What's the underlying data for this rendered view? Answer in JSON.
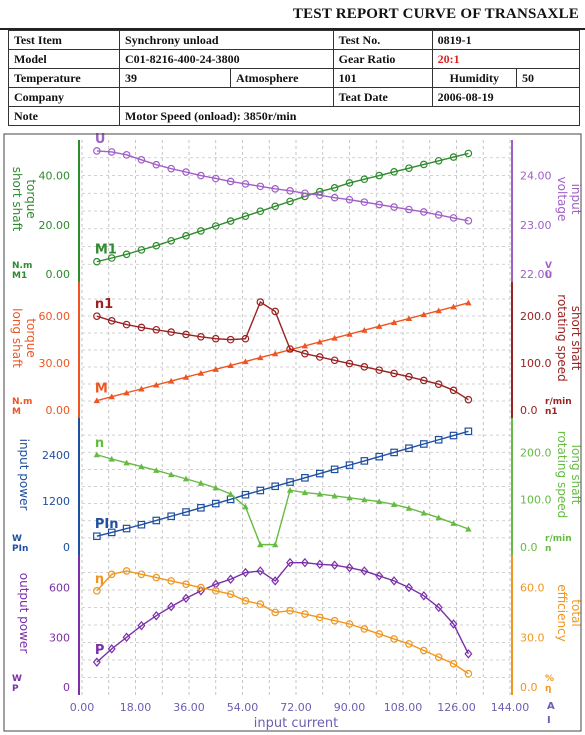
{
  "header": {
    "title": "TEST REPORT CURVE OF TRANSAXLE",
    "test_item_label": "Test Item",
    "test_item": "Synchrony unload",
    "test_no_label": "Test No.",
    "test_no": "0819-1",
    "model_label": "Model",
    "model": "C01-8216-400-24-3800",
    "gear_ratio_label": "Gear Ratio",
    "gear_ratio": "20:1",
    "temperature_label": "Temperature",
    "temperature": "39",
    "atmosphere_label": "Atmosphere",
    "atmosphere": "101",
    "humidity_label": "Humidity",
    "humidity": "50",
    "company_label": "Company",
    "company": "",
    "test_date_label": "Teat Date",
    "test_date": "2006-08-19",
    "note_label": "Note",
    "note": "Motor Speed (onload): 3850r/min"
  },
  "chart_data": {
    "type": "line",
    "xlabel": "input current",
    "x_unit": "A",
    "x_symbol": "I",
    "xlim": [
      0,
      144
    ],
    "x_ticks": [
      "0.00",
      "18.00",
      "36.00",
      "54.00",
      "72.00",
      "90.00",
      "108.00",
      "126.00",
      "144.00"
    ],
    "grid": true,
    "x": [
      5,
      10,
      15,
      20,
      25,
      30,
      35,
      40,
      45,
      50,
      55,
      60,
      65,
      70,
      75,
      80,
      85,
      90,
      95,
      100,
      105,
      110,
      115,
      120,
      125,
      130
    ],
    "panels": [
      {
        "left_axis": {
          "label": "short shaft torque",
          "unit": "N.m",
          "symbol": "M1",
          "ticks": [
            "0.00",
            "20.00",
            "40.00"
          ],
          "lim": [
            0,
            52
          ],
          "color": "#2e8b2e"
        },
        "right_axis": {
          "label": "input voltage",
          "unit": "V",
          "symbol": "U",
          "ticks": [
            "22.00",
            "23.00",
            "24.00"
          ],
          "lim": [
            22,
            24.6
          ],
          "color": "#a060c8"
        },
        "series": [
          {
            "name": "M1",
            "axis": "left",
            "color": "#2e8b2e",
            "marker": "circle",
            "values": [
              5,
              6.5,
              8,
              9.8,
              11.5,
              13.5,
              15.5,
              17.5,
              19.5,
              21.5,
              23.5,
              25.5,
              27.5,
              29.5,
              31.5,
              33.5,
              35,
              37,
              38.5,
              40,
              41.5,
              43,
              44.5,
              46,
              47.5,
              49
            ]
          },
          {
            "name": "U",
            "axis": "right",
            "color": "#a060c8",
            "marker": "circle",
            "values": [
              24.5,
              24.48,
              24.42,
              24.32,
              24.22,
              24.14,
              24.07,
              24.0,
              23.94,
              23.88,
              23.83,
              23.78,
              23.73,
              23.69,
              23.64,
              23.6,
              23.55,
              23.51,
              23.46,
              23.41,
              23.36,
              23.31,
              23.26,
              23.2,
              23.14,
              23.08
            ]
          }
        ]
      },
      {
        "left_axis": {
          "label": "long shaft torque",
          "unit": "N.m",
          "symbol": "M",
          "ticks": [
            "0.00",
            "30.00",
            "60.00"
          ],
          "lim": [
            0,
            78
          ],
          "color": "#ee5522"
        },
        "right_axis": {
          "label": "short shaft rotating speed",
          "unit": "r/min",
          "symbol": "n1",
          "ticks": [
            "0.0",
            "100.0",
            "200.0"
          ],
          "lim": [
            0,
            260
          ],
          "color": "#992222"
        },
        "series": [
          {
            "name": "M",
            "axis": "left",
            "color": "#ee5522",
            "marker": "triangle",
            "values": [
              6,
              8.5,
              11,
              13.5,
              16,
              18.5,
              21,
              23.5,
              26,
              28.5,
              31,
              33.5,
              36,
              38.5,
              41,
              43.5,
              46,
              48.5,
              51,
              53.5,
              56,
              58.5,
              61,
              63.5,
              66,
              68.5
            ]
          },
          {
            "name": "n1",
            "axis": "right",
            "color": "#992222",
            "marker": "circle",
            "values": [
              200,
              190,
              182,
              176,
              171,
              166,
              161,
              156,
              152,
              150,
              152,
              230,
              210,
              130,
              120,
              113,
              106,
              99,
              92,
              85,
              78,
              71,
              63,
              55,
              42,
              22
            ]
          }
        ]
      },
      {
        "left_axis": {
          "label": "input power",
          "unit": "W",
          "symbol": "PIn",
          "ticks": [
            "0",
            "1200",
            "2400"
          ],
          "lim": [
            0,
            3200
          ],
          "color": "#1f4fa0"
        },
        "right_axis": {
          "label": "long shaft rotating speed",
          "unit": "r/min",
          "symbol": "n",
          "ticks": [
            "0.0",
            "100.0",
            "200.0"
          ],
          "lim": [
            0,
            260
          ],
          "color": "#66bb44"
        },
        "series": [
          {
            "name": "PIn",
            "axis": "left",
            "color": "#1f4fa0",
            "marker": "square",
            "values": [
              280,
              380,
              480,
              580,
              690,
              800,
              910,
              1020,
              1130,
              1240,
              1360,
              1470,
              1580,
              1690,
              1800,
              1910,
              2020,
              2130,
              2240,
              2350,
              2460,
              2570,
              2680,
              2790,
              2900,
              3010
            ]
          },
          {
            "name": "n",
            "axis": "right",
            "color": "#66bb44",
            "marker": "triangle",
            "values": [
              195,
              186,
              178,
              170,
              162,
              153,
              144,
              135,
              125,
              112,
              85,
              5,
              5,
              120,
              115,
              112,
              108,
              104,
              100,
              96,
              90,
              82,
              72,
              62,
              50,
              38
            ]
          }
        ]
      },
      {
        "left_axis": {
          "label": "output power",
          "unit": "W",
          "symbol": "P",
          "ticks": [
            "0",
            "300",
            "600"
          ],
          "lim": [
            0,
            760
          ],
          "color": "#7a2fa8"
        },
        "right_axis": {
          "label": "total efficiency",
          "unit": "%",
          "symbol": "η",
          "ticks": [
            "0.0",
            "30.0",
            "60.0"
          ],
          "lim": [
            0,
            76
          ],
          "color": "#f0961e"
        },
        "series": [
          {
            "name": "P",
            "axis": "left",
            "color": "#7a2fa8",
            "marker": "diamond",
            "values": [
              150,
              230,
              300,
              370,
              430,
              485,
              535,
              580,
              620,
              650,
              690,
              700,
              640,
              750,
              750,
              740,
              735,
              720,
              700,
              670,
              640,
              600,
              550,
              480,
              380,
              200
            ]
          },
          {
            "name": "η",
            "axis": "right",
            "color": "#f0961e",
            "marker": "circle",
            "values": [
              58,
              68,
              70,
              68,
              66,
              64,
              62,
              60,
              58,
              56,
              52,
              50,
              45,
              46,
              44,
              42,
              40,
              38,
              35,
              32,
              29,
              26,
              22,
              18,
              14,
              8
            ]
          }
        ]
      }
    ]
  }
}
